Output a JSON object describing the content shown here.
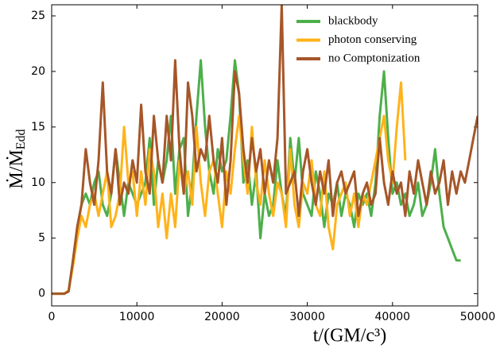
{
  "chart_data": {
    "type": "line",
    "xlabel": "t/(GM/c³)",
    "ylabel": "Ṁ/Ṁ",
    "ylabel_sub": "Edd",
    "x": [
      0,
      500,
      1000,
      1500,
      2000,
      2500,
      3000,
      3500,
      4000,
      4500,
      5000,
      5500,
      6000,
      6500,
      7000,
      7500,
      8000,
      8500,
      9000,
      9500,
      10000,
      10500,
      11000,
      11500,
      12000,
      12500,
      13000,
      13500,
      14000,
      14500,
      15000,
      15500,
      16000,
      16500,
      17000,
      17500,
      18000,
      18500,
      19000,
      19500,
      20000,
      20500,
      21000,
      21500,
      22000,
      22500,
      23000,
      23500,
      24000,
      24500,
      25000,
      25500,
      26000,
      26500,
      27000,
      27500,
      28000,
      28500,
      29000,
      29500,
      30000,
      30500,
      31000,
      31500,
      32000,
      32500,
      33000,
      33500,
      34000,
      34500,
      35000,
      35500,
      36000,
      36500,
      37000,
      37500,
      38000,
      38500,
      39000,
      39500,
      40000,
      40500,
      41000,
      41500,
      42000,
      42500,
      43000,
      43500,
      44000,
      44500,
      45000,
      45500,
      46000,
      46500,
      47000,
      47500,
      48000,
      48500,
      49000,
      49500,
      50000
    ],
    "series": [
      {
        "name": "blackbody",
        "color": "#4daf4a",
        "values": [
          0,
          0,
          0,
          0,
          0.3,
          3,
          6,
          8,
          9,
          8,
          10,
          11,
          8,
          7,
          9,
          13,
          10,
          7,
          10,
          9,
          8,
          9,
          10,
          14,
          8,
          12,
          10,
          12,
          16,
          9,
          13,
          14,
          7,
          10,
          16,
          21,
          15,
          11,
          9,
          13,
          11,
          12,
          16,
          21,
          18,
          10,
          12,
          8,
          11,
          5,
          9,
          7,
          8,
          12,
          9,
          7,
          14,
          10,
          14,
          9,
          8,
          7,
          11,
          9,
          6,
          9,
          8,
          10,
          7,
          9,
          8,
          6,
          9,
          8,
          9,
          7,
          10,
          16,
          20,
          14,
          9,
          10,
          8,
          9,
          7,
          8,
          10,
          7,
          8,
          10,
          13,
          9,
          6,
          5,
          4,
          3,
          3,
          null,
          null,
          null,
          null
        ]
      },
      {
        "name": "photon conserving",
        "color": "#ffb31a",
        "values": [
          0,
          0,
          0,
          0,
          0.3,
          2.5,
          5,
          7,
          6,
          8,
          9,
          7,
          9,
          11,
          6,
          7,
          9,
          15,
          10,
          11,
          7,
          11,
          8,
          13,
          11,
          6,
          9,
          5,
          9,
          6,
          12,
          9,
          11,
          8,
          15,
          10,
          7,
          11,
          12,
          9,
          6,
          11,
          9,
          13,
          16,
          12,
          9,
          15,
          10,
          8,
          12,
          9,
          7,
          10,
          9,
          6,
          13,
          8,
          6,
          10,
          9,
          12,
          8,
          7,
          11,
          6,
          4,
          8,
          9,
          10,
          7,
          9,
          6,
          9,
          8,
          10,
          12,
          14,
          16,
          12,
          10,
          15,
          19,
          12,
          null,
          null,
          null,
          null,
          null,
          null,
          null,
          null,
          null,
          null,
          null,
          null,
          null,
          null,
          null,
          null,
          null
        ]
      },
      {
        "name": "no Comptonization",
        "color": "#a65628",
        "values": [
          0,
          0,
          0,
          0,
          0.2,
          3,
          6,
          8,
          13,
          10,
          8,
          12,
          19,
          11,
          9,
          13,
          8,
          10,
          9,
          12,
          10,
          17,
          11,
          9,
          16,
          12,
          10,
          16,
          12,
          21,
          13,
          9,
          19,
          16,
          11,
          13,
          12,
          16,
          12,
          10,
          14,
          8,
          12,
          20,
          18,
          13,
          10,
          14,
          11,
          13,
          9,
          12,
          10,
          14,
          26,
          9,
          10,
          11,
          7,
          11,
          13,
          10,
          8,
          11,
          9,
          12,
          7,
          10,
          11,
          9,
          10,
          11,
          7,
          9,
          10,
          8,
          9,
          14,
          10,
          8,
          11,
          9,
          10,
          7,
          11,
          9,
          12,
          10,
          8,
          11,
          9,
          10,
          12,
          8,
          11,
          9,
          11,
          10,
          12,
          14,
          16
        ]
      }
    ],
    "xlim": [
      0,
      50000
    ],
    "xticks": [
      0,
      10000,
      20000,
      30000,
      40000,
      50000
    ],
    "ylim": [
      -1.1,
      26
    ],
    "yticks": [
      0,
      5,
      10,
      15,
      20,
      25
    ],
    "legend": "upper right"
  }
}
